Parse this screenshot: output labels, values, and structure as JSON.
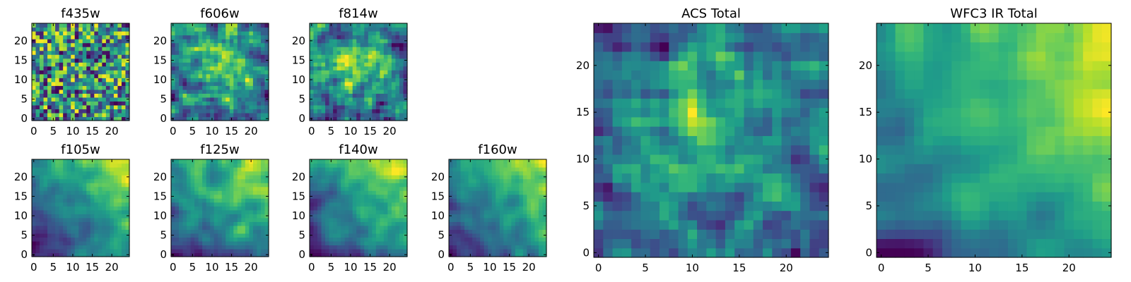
{
  "chart_data": [
    {
      "type": "heatmap",
      "title": "f435w",
      "grid": "off",
      "xlim": [
        -0.5,
        24.5
      ],
      "ylim": [
        -0.5,
        24.5
      ],
      "xticks": [
        0,
        5,
        10,
        15,
        20
      ],
      "yticks": [
        0,
        5,
        10,
        15,
        20
      ],
      "size": 25,
      "colormap": "viridis",
      "texture": "fine-noise",
      "seed": 11
    },
    {
      "type": "heatmap",
      "title": "f606w",
      "grid": "off",
      "xlim": [
        -0.5,
        24.5
      ],
      "ylim": [
        -0.5,
        24.5
      ],
      "xticks": [
        0,
        5,
        10,
        15,
        20
      ],
      "yticks": [
        0,
        5,
        10,
        15,
        20
      ],
      "size": 25,
      "colormap": "viridis",
      "texture": "noise-with-central-bright",
      "seed": 23
    },
    {
      "type": "heatmap",
      "title": "f814w",
      "grid": "off",
      "xlim": [
        -0.5,
        24.5
      ],
      "ylim": [
        -0.5,
        24.5
      ],
      "xticks": [
        0,
        5,
        10,
        15,
        20
      ],
      "yticks": [
        0,
        5,
        10,
        15,
        20
      ],
      "size": 25,
      "colormap": "viridis",
      "texture": "noise-with-central-bright",
      "seed": 37
    },
    {
      "type": "heatmap",
      "title": "f105w",
      "grid": "off",
      "xlim": [
        -0.5,
        24.5
      ],
      "ylim": [
        -0.5,
        24.5
      ],
      "xticks": [
        0,
        5,
        10,
        15,
        20
      ],
      "yticks": [
        0,
        5,
        10,
        15,
        20
      ],
      "size": 25,
      "colormap": "viridis",
      "texture": "smooth-gradient-top-right",
      "seed": 41
    },
    {
      "type": "heatmap",
      "title": "f125w",
      "grid": "off",
      "xlim": [
        -0.5,
        24.5
      ],
      "ylim": [
        -0.5,
        24.5
      ],
      "xticks": [
        0,
        5,
        10,
        15,
        20
      ],
      "yticks": [
        0,
        5,
        10,
        15,
        20
      ],
      "size": 25,
      "colormap": "viridis",
      "texture": "smooth-gradient-top-right",
      "seed": 53
    },
    {
      "type": "heatmap",
      "title": "f140w",
      "grid": "off",
      "xlim": [
        -0.5,
        24.5
      ],
      "ylim": [
        -0.5,
        24.5
      ],
      "xticks": [
        0,
        5,
        10,
        15,
        20
      ],
      "yticks": [
        0,
        5,
        10,
        15,
        20
      ],
      "size": 25,
      "colormap": "viridis",
      "texture": "smooth-gradient-top-right",
      "seed": 67
    },
    {
      "type": "heatmap",
      "title": "f160w",
      "grid": "off",
      "xlim": [
        -0.5,
        24.5
      ],
      "ylim": [
        -0.5,
        24.5
      ],
      "xticks": [
        0,
        5,
        10,
        15,
        20
      ],
      "yticks": [
        0,
        5,
        10,
        15,
        20
      ],
      "size": 25,
      "colormap": "viridis",
      "texture": "smooth-gradient-top-right",
      "seed": 79
    },
    {
      "type": "heatmap",
      "title": "ACS Total",
      "grid": "off",
      "xlim": [
        -0.5,
        24.5
      ],
      "ylim": [
        -0.5,
        24.5
      ],
      "xticks": [
        0,
        5,
        10,
        15,
        20
      ],
      "yticks": [
        0,
        5,
        10,
        15,
        20
      ],
      "size": 25,
      "colormap": "viridis",
      "texture": "noise-with-central-bright",
      "seed": 89
    },
    {
      "type": "heatmap",
      "title": "WFC3 IR Total",
      "grid": "off",
      "xlim": [
        -0.5,
        24.5
      ],
      "ylim": [
        -0.5,
        24.5
      ],
      "xticks": [
        0,
        5,
        10,
        15,
        20
      ],
      "yticks": [
        0,
        5,
        10,
        15,
        20
      ],
      "size": 25,
      "colormap": "viridis",
      "texture": "smooth-gradient-top-right",
      "seed": 97
    }
  ]
}
